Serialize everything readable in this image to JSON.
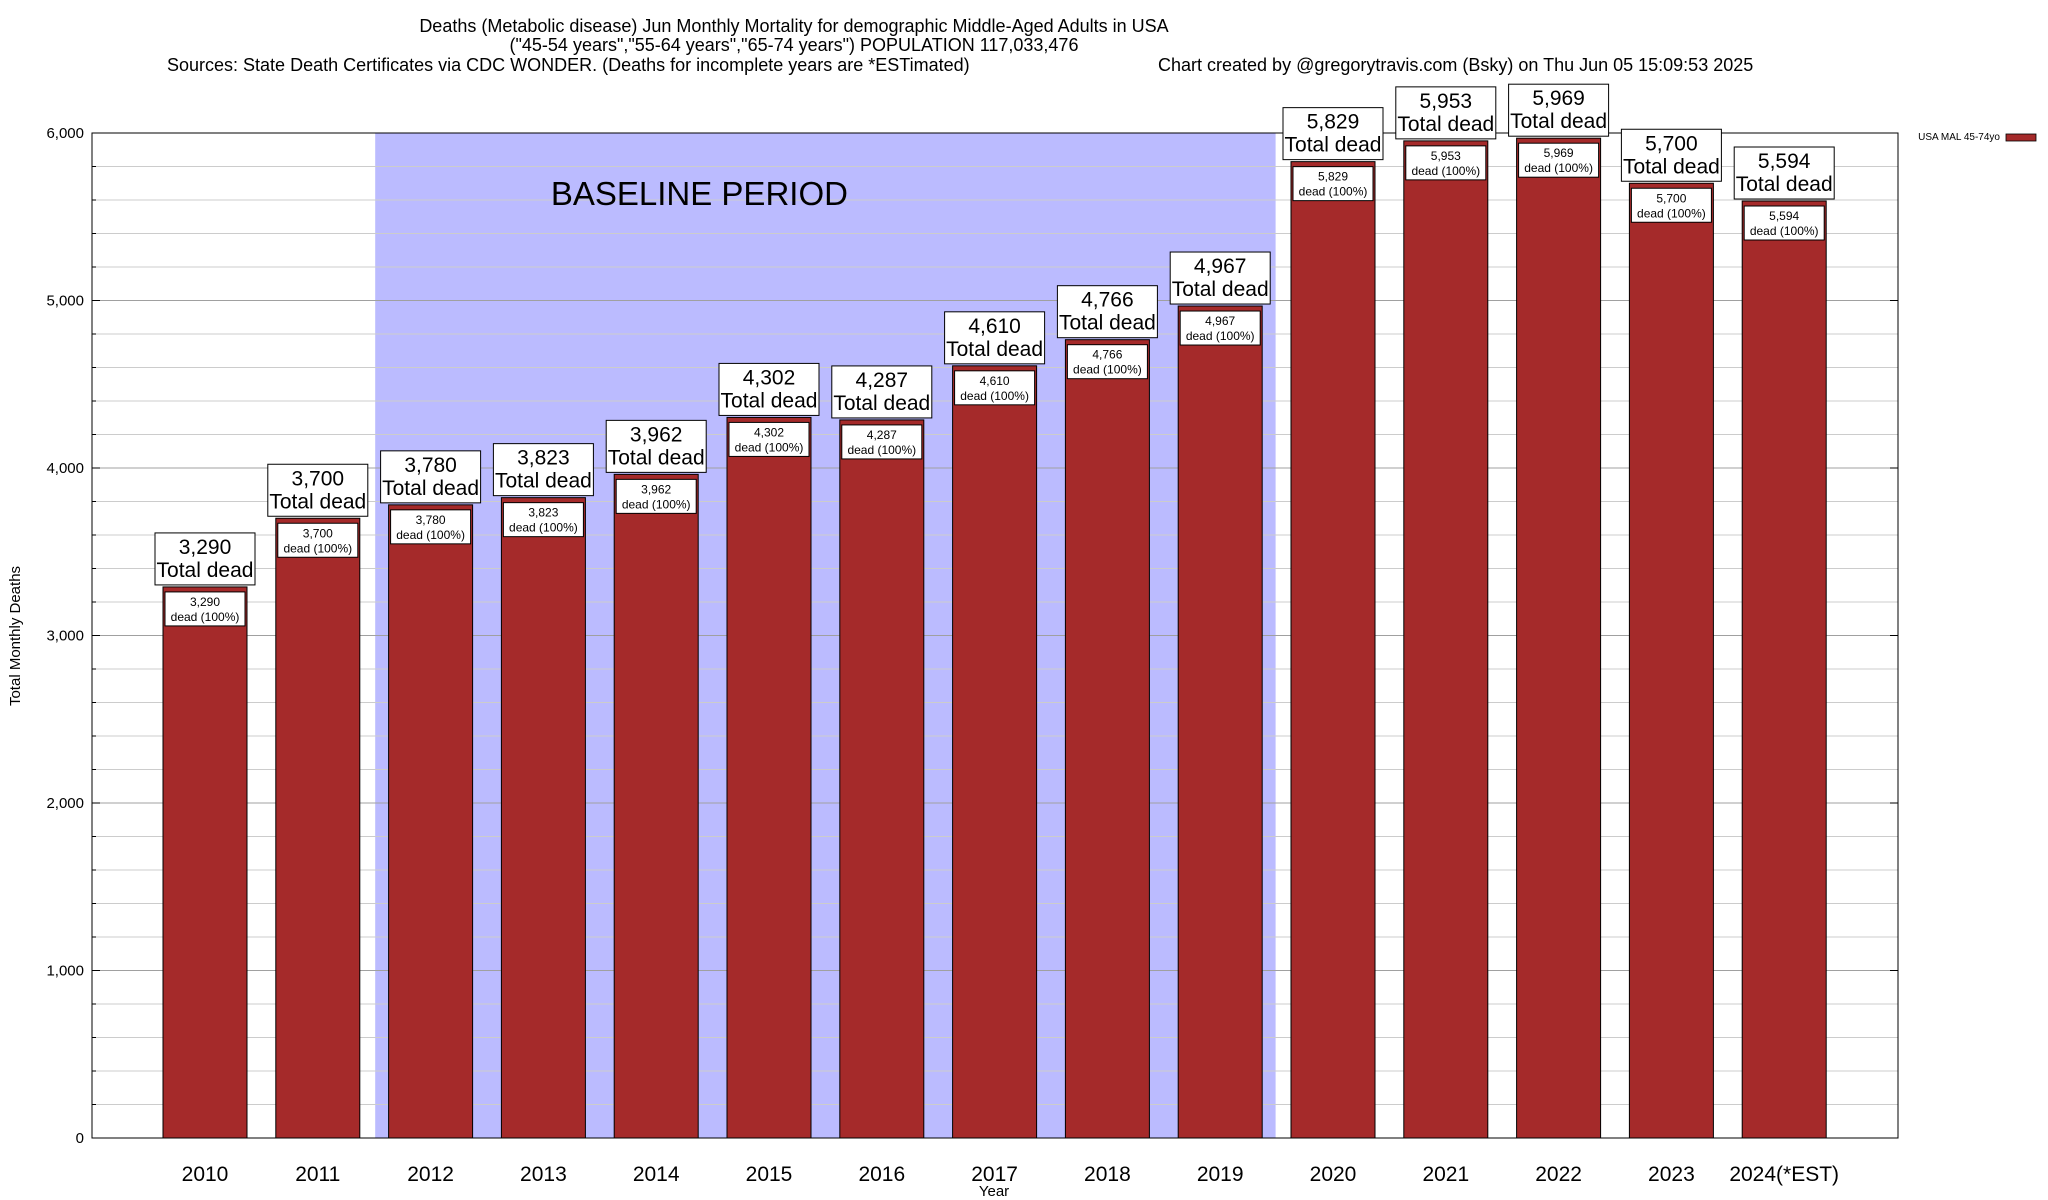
{
  "chart_data": {
    "type": "bar",
    "title_lines": [
      "Deaths (Metabolic disease) Jun Monthly Mortality for demographic Middle-Aged Adults in USA",
      "(\"45-54 years\",\"55-64 years\",\"65-74 years\") POPULATION 117,033,476"
    ],
    "sources": "Sources: State Death Certificates via CDC WONDER. (Deaths for incomplete years are *ESTimated)",
    "credit": "Chart created by @gregorytravis.com (Bsky) on Thu Jun 05 15:09:53 2025",
    "xlabel": "Year",
    "ylabel": "Total Monthly Deaths",
    "ylim": [
      0,
      6000
    ],
    "yticks": [
      0,
      1000,
      2000,
      3000,
      4000,
      5000,
      6000
    ],
    "ytick_labels": [
      "0",
      "1,000",
      "2,000",
      "3,000",
      "4,000",
      "5,000",
      "6,000"
    ],
    "grid": true,
    "categories": [
      "2010",
      "2011",
      "2012",
      "2013",
      "2014",
      "2015",
      "2016",
      "2017",
      "2018",
      "2019",
      "2020",
      "2021",
      "2022",
      "2023",
      "2024(*EST)"
    ],
    "series": [
      {
        "name": "USA MAL 45-74yo",
        "color": "#a52a2a",
        "values": [
          3290,
          3700,
          3780,
          3823,
          3962,
          4302,
          4287,
          4610,
          4766,
          4967,
          5829,
          5953,
          5969,
          5700,
          5594
        ],
        "value_labels": [
          "3,290",
          "3,700",
          "3,780",
          "3,823",
          "3,962",
          "4,302",
          "4,287",
          "4,610",
          "4,766",
          "4,967",
          "5,829",
          "5,953",
          "5,969",
          "5,700",
          "5,594"
        ]
      }
    ],
    "total_label": "Total dead",
    "inner_label": "dead (100%)",
    "baseline": {
      "label": "BASELINE PERIOD",
      "start_category": "2012",
      "end_category": "2019",
      "color": "#bbbbff"
    },
    "legend_placement": "top-right"
  }
}
